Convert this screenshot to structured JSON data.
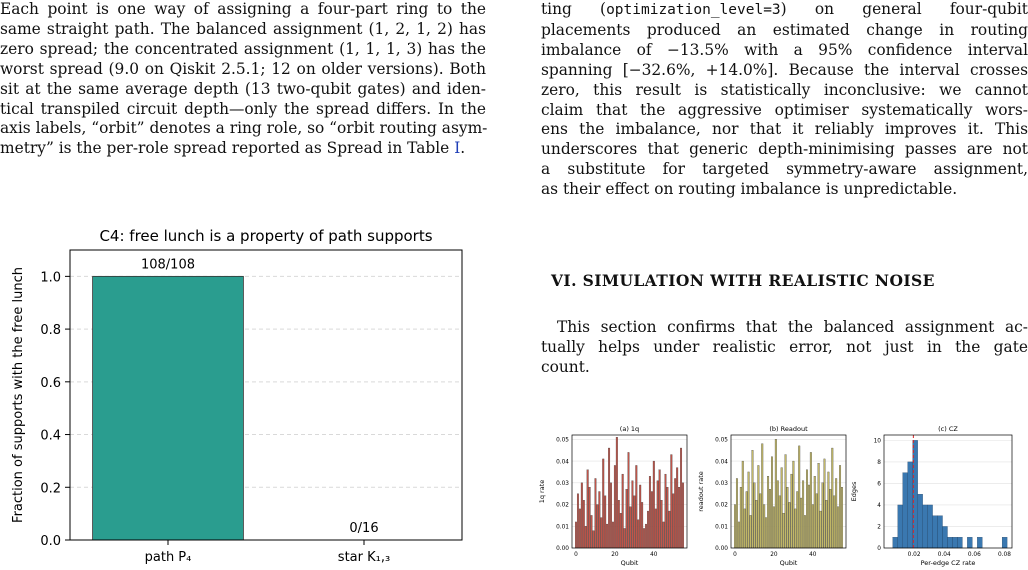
{
  "left_text": {
    "lines": [
      "Each point is one way of assigning a four-part ring to the",
      "same straight path. The balanced assignment (1, 2, 1, 2) has",
      "zero spread; the concentrated assignment (1, 1, 1, 3) has the",
      "worst spread (9.0 on Qiskit 2.5.1; 12 on older versions). Both",
      "sit at the same average depth (13 two-qubit gates) and iden-",
      "tical transpiled circuit depth—only the spread differs. In the",
      "axis labels, “orbit” denotes a ring role, so “orbit routing asym-"
    ],
    "last_line_text": "metry” is the per-role spread reported as Spread in Table ",
    "table_ref": "I",
    "last_line_end": "."
  },
  "right_text": {
    "line1_prefix": "ting (",
    "line1_code": "optimization_level=3",
    "line1_suffix": ") on general four-qubit",
    "lines": [
      "placements produced an estimated change in routing",
      "imbalance of −13.5% with a 95% confidence interval",
      "spanning [−32.6%, +14.0%]. Because the interval crosses",
      "zero, this result is statistically inconclusive: we cannot",
      "claim that the aggressive optimiser systematically wors-",
      "ens the imbalance, nor that it reliably improves it. This",
      "underscores that generic depth-minimising passes are not",
      "a substitute for targeted symmetry-aware assignment,",
      "as their effect on routing imbalance is unpredictable."
    ]
  },
  "section": {
    "heading": "VI.   SIMULATION WITH REALISTIC NOISE",
    "lines": [
      "This section confirms that the balanced assignment ac-",
      "tually helps under realistic error, not just in the gate",
      "count."
    ]
  },
  "chart_data": [
    {
      "type": "bar",
      "title": "C4: free lunch is a property of path supports",
      "categories": [
        "path P₄",
        "star K₁,₃"
      ],
      "values": [
        1.0,
        0.0
      ],
      "data_labels": [
        "108/108",
        "0/16"
      ],
      "xlabel": "",
      "ylabel": "Fraction of supports with the free lunch",
      "ylim": [
        0,
        1.1
      ],
      "yticks": [
        "0.0",
        "0.2",
        "0.4",
        "0.6",
        "0.8",
        "1.0"
      ],
      "grid": true,
      "bar_color": "#2a9d8f"
    },
    {
      "type": "bar",
      "title": "(a) 1q",
      "xlabel": "Qubit",
      "ylabel": "1q rate",
      "ylim": [
        0,
        0.052
      ],
      "yticks": [
        "0.00",
        "0.01",
        "0.02",
        "0.03",
        "0.04",
        "0.05"
      ],
      "xticks": [
        "0",
        "20",
        "40"
      ],
      "x": [
        0,
        1,
        2,
        3,
        4,
        5,
        6,
        7,
        8,
        9,
        10,
        11,
        12,
        13,
        14,
        15,
        16,
        17,
        18,
        19,
        20,
        21,
        22,
        23,
        24,
        25,
        26,
        27,
        28,
        29,
        30,
        31,
        32,
        33,
        34,
        35,
        36,
        37,
        38,
        39,
        40,
        41,
        42,
        43,
        44,
        45,
        46,
        47,
        48,
        49,
        50,
        51,
        52,
        53,
        54,
        55
      ],
      "values": [
        0.012,
        0.025,
        0.018,
        0.03,
        0.022,
        0.01,
        0.036,
        0.028,
        0.015,
        0.008,
        0.032,
        0.02,
        0.026,
        0.014,
        0.041,
        0.024,
        0.011,
        0.046,
        0.03,
        0.012,
        0.038,
        0.051,
        0.022,
        0.016,
        0.034,
        0.009,
        0.027,
        0.044,
        0.019,
        0.031,
        0.024,
        0.038,
        0.013,
        0.029,
        0.021,
        0.009,
        0.011,
        0.017,
        0.033,
        0.026,
        0.04,
        0.018,
        0.031,
        0.036,
        0.022,
        0.012,
        0.034,
        0.028,
        0.017,
        0.043,
        0.025,
        0.032,
        0.037,
        0.028,
        0.046,
        0.03
      ],
      "bar_color": "#c0554a"
    },
    {
      "type": "bar",
      "title": "(b) Readout",
      "xlabel": "Qubit",
      "ylabel": "readout rate",
      "ylim": [
        0,
        0.052
      ],
      "yticks": [
        "0.00",
        "0.01",
        "0.02",
        "0.03",
        "0.04",
        "0.05"
      ],
      "xticks": [
        "0",
        "20",
        "40"
      ],
      "x": [
        0,
        1,
        2,
        3,
        4,
        5,
        6,
        7,
        8,
        9,
        10,
        11,
        12,
        13,
        14,
        15,
        16,
        17,
        18,
        19,
        20,
        21,
        22,
        23,
        24,
        25,
        26,
        27,
        28,
        29,
        30,
        31,
        32,
        33,
        34,
        35,
        36,
        37,
        38,
        39,
        40,
        41,
        42,
        43,
        44,
        45,
        46,
        47,
        48,
        49,
        50,
        51,
        52,
        53,
        54,
        55
      ],
      "values": [
        0.02,
        0.032,
        0.012,
        0.028,
        0.04,
        0.018,
        0.026,
        0.035,
        0.015,
        0.045,
        0.03,
        0.022,
        0.038,
        0.025,
        0.048,
        0.02,
        0.014,
        0.033,
        0.027,
        0.042,
        0.019,
        0.05,
        0.031,
        0.024,
        0.037,
        0.016,
        0.043,
        0.028,
        0.021,
        0.034,
        0.04,
        0.018,
        0.026,
        0.047,
        0.023,
        0.031,
        0.015,
        0.036,
        0.029,
        0.044,
        0.02,
        0.033,
        0.025,
        0.039,
        0.017,
        0.03,
        0.041,
        0.022,
        0.035,
        0.027,
        0.046,
        0.024,
        0.032,
        0.019,
        0.038,
        0.028
      ],
      "bar_color": "#c2b868"
    },
    {
      "type": "bar",
      "title": "(c) CZ",
      "xlabel": "Per-edge CZ rate",
      "ylabel": "Edges",
      "xlim": [
        0.0,
        0.085
      ],
      "ylim": [
        0,
        10.5
      ],
      "yticks": [
        "0",
        "2",
        "4",
        "6",
        "8",
        "10"
      ],
      "xticks": [
        "0.02",
        "0.04",
        "0.06",
        "0.08"
      ],
      "bin_width": 0.0033,
      "x": [
        0.0075,
        0.0108,
        0.0141,
        0.0174,
        0.0207,
        0.024,
        0.0273,
        0.0306,
        0.0339,
        0.0372,
        0.0405,
        0.0438,
        0.0471,
        0.0504,
        0.057,
        0.0636,
        0.0801
      ],
      "values": [
        1,
        4,
        7,
        8,
        10,
        5,
        4,
        4,
        3,
        3,
        2,
        1,
        1,
        1,
        1,
        1,
        1
      ],
      "reference_line": 0.0195,
      "bar_color": "#3a78b0",
      "reference_line_color": "#d62728"
    }
  ]
}
